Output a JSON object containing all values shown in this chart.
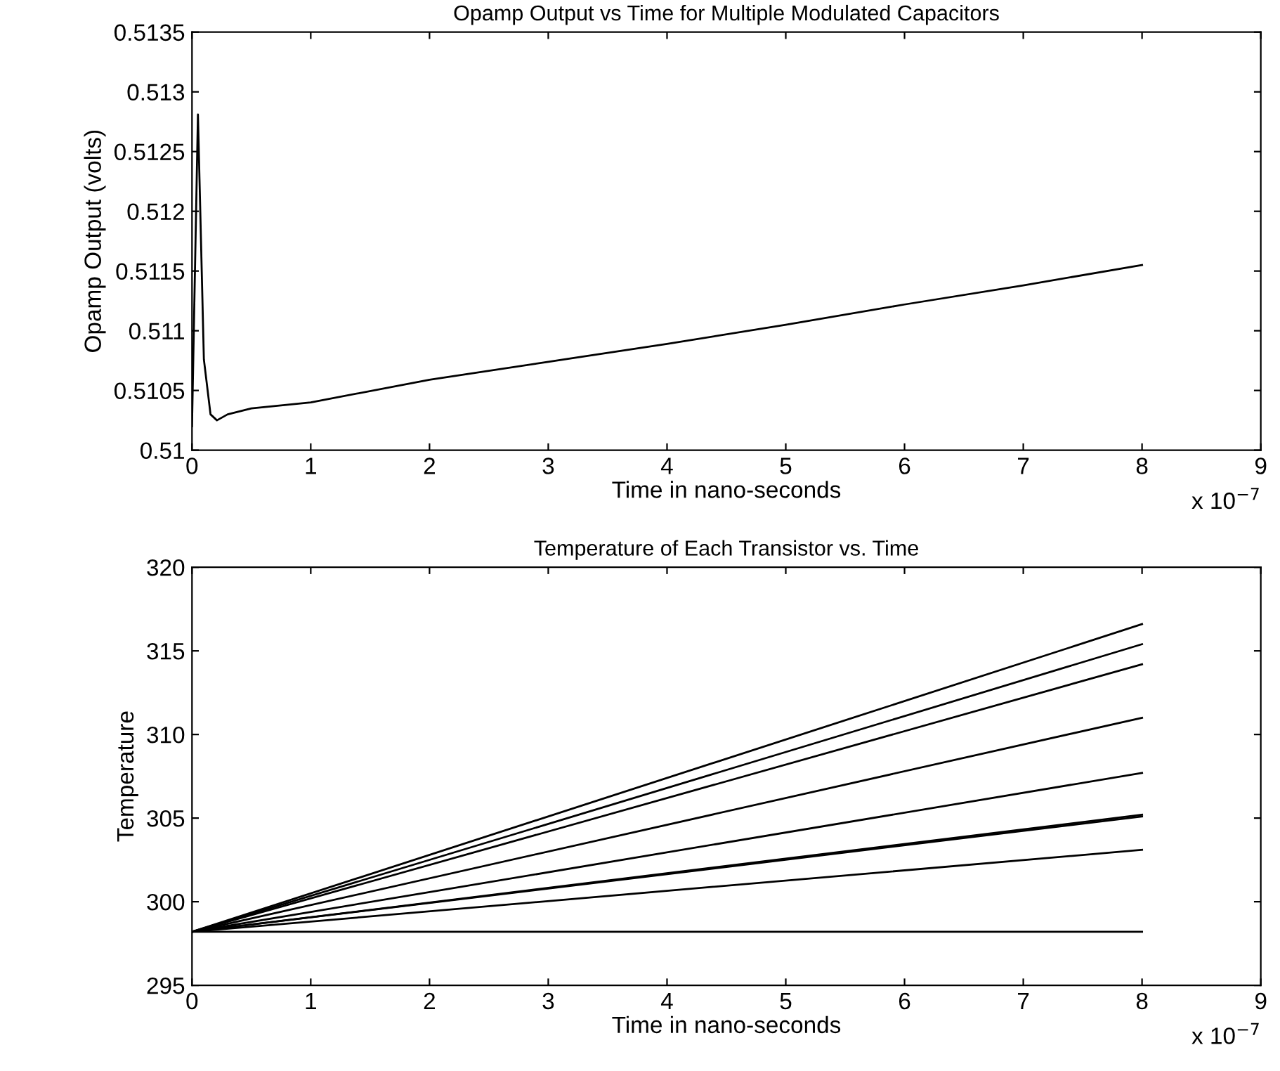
{
  "chart_data": [
    {
      "type": "line",
      "title": "Opamp Output vs Time for Multiple Modulated Capacitors",
      "xlabel": "Time in nano-seconds",
      "ylabel": "Opamp Output (volts)",
      "xlim": [
        0,
        9
      ],
      "xticks": [
        0,
        1,
        2,
        3,
        4,
        5,
        6,
        7,
        8,
        9
      ],
      "ylim": [
        0.51,
        0.5135
      ],
      "yticks": [
        0.51,
        0.5105,
        0.511,
        0.5115,
        0.512,
        0.5125,
        0.513,
        0.5135
      ],
      "annotations": [
        "x 10$^{−7}$"
      ],
      "grid": false,
      "series": [
        {
          "color": "#000000",
          "x": [
            0,
            0.05,
            0.1,
            0.156,
            0.21,
            0.3,
            0.5,
            1,
            2,
            3,
            4,
            5,
            6,
            7,
            8
          ],
          "values": [
            0.5102,
            0.51281,
            0.51076,
            0.5103,
            0.51025,
            0.5103,
            0.51035,
            0.5104,
            0.51059,
            0.51074,
            0.51089,
            0.51105,
            0.51122,
            0.51138,
            0.51155
          ]
        }
      ]
    },
    {
      "type": "line",
      "title": "Temperature of Each Transistor vs. Time",
      "xlabel": "Time in nano-seconds",
      "ylabel": "Temperature",
      "xlim": [
        0,
        9
      ],
      "xticks": [
        0,
        1,
        2,
        3,
        4,
        5,
        6,
        7,
        8,
        9
      ],
      "ylim": [
        295,
        320
      ],
      "yticks": [
        295,
        300,
        305,
        310,
        315,
        320
      ],
      "annotations": [
        "x 10$^{−7}$"
      ],
      "grid": false,
      "series": [
        {
          "color": "#000000",
          "x": [
            0,
            8
          ],
          "values": [
            298.2,
            316.6
          ]
        },
        {
          "color": "#000000",
          "x": [
            0,
            8
          ],
          "values": [
            298.2,
            315.4
          ]
        },
        {
          "color": "#000000",
          "x": [
            0,
            8
          ],
          "values": [
            298.2,
            314.2
          ]
        },
        {
          "color": "#000000",
          "x": [
            0,
            8
          ],
          "values": [
            298.2,
            311.0
          ]
        },
        {
          "color": "#000000",
          "x": [
            0,
            8
          ],
          "values": [
            298.2,
            307.7
          ]
        },
        {
          "color": "#000000",
          "x": [
            0,
            8
          ],
          "values": [
            298.2,
            305.2
          ]
        },
        {
          "color": "#000000",
          "x": [
            0,
            8
          ],
          "values": [
            298.2,
            305.1
          ]
        },
        {
          "color": "#000000",
          "x": [
            0,
            8
          ],
          "values": [
            298.2,
            303.1
          ]
        },
        {
          "color": "#000000",
          "x": [
            0,
            8
          ],
          "values": [
            298.2,
            298.2
          ]
        }
      ]
    }
  ]
}
